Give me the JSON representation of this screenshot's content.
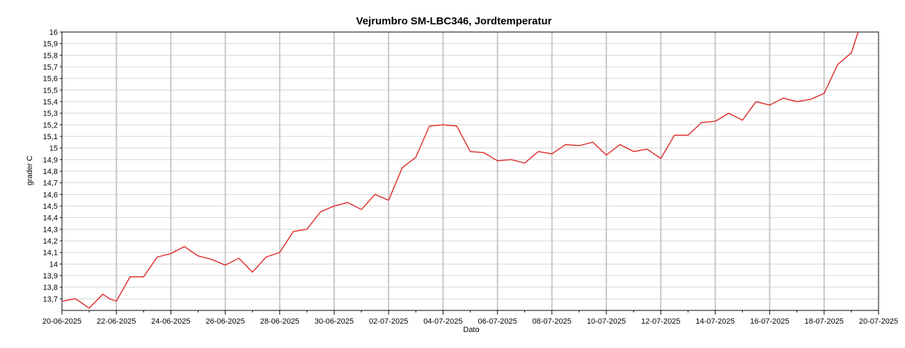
{
  "chart_data": {
    "type": "line",
    "title": "Vejrumbro SM-LBC346, Jordtemperatur",
    "xlabel": "Dato",
    "ylabel": "grader C",
    "x_tick_labels": [
      "20-06-2025",
      "22-06-2025",
      "24-06-2025",
      "26-06-2025",
      "28-06-2025",
      "30-06-2025",
      "02-07-2025",
      "04-07-2025",
      "06-07-2025",
      "08-07-2025",
      "10-07-2025",
      "12-07-2025",
      "14-07-2025",
      "16-07-2025",
      "18-07-2025",
      "20-07-2025"
    ],
    "y_tick_labels": [
      "13,7",
      "13,8",
      "13,9",
      "14",
      "14,1",
      "14,2",
      "14,3",
      "14,4",
      "14,5",
      "14,6",
      "14,7",
      "14,8",
      "14,9",
      "15",
      "15,1",
      "15,2",
      "15,3",
      "15,4",
      "15,5",
      "15,6",
      "15,7",
      "15,8",
      "15,9",
      "16"
    ],
    "xlim": [
      "2025-06-20",
      "2025-07-20"
    ],
    "ylim": [
      13.6,
      16.0
    ],
    "grid": true,
    "series": [
      {
        "color": "#e03030",
        "x": [
          "2025-06-20",
          "2025-06-20T12:00",
          "2025-06-21",
          "2025-06-21T12:00",
          "2025-06-21T18:00",
          "2025-06-22",
          "2025-06-22T12:00",
          "2025-06-23",
          "2025-06-23T12:00",
          "2025-06-24",
          "2025-06-24T12:00",
          "2025-06-25",
          "2025-06-25T12:00",
          "2025-06-26",
          "2025-06-26T12:00",
          "2025-06-27",
          "2025-06-27T12:00",
          "2025-06-28",
          "2025-06-28T12:00",
          "2025-06-29",
          "2025-06-29T12:00",
          "2025-06-30",
          "2025-06-30T12:00",
          "2025-07-01",
          "2025-07-01T12:00",
          "2025-07-02",
          "2025-07-02T12:00",
          "2025-07-03",
          "2025-07-03T12:00",
          "2025-07-04",
          "2025-07-04T12:00",
          "2025-07-05",
          "2025-07-05T12:00",
          "2025-07-06",
          "2025-07-06T12:00",
          "2025-07-07",
          "2025-07-07T12:00",
          "2025-07-08",
          "2025-07-08T12:00",
          "2025-07-09",
          "2025-07-09T12:00",
          "2025-07-10",
          "2025-07-10T12:00",
          "2025-07-11",
          "2025-07-11T12:00",
          "2025-07-12",
          "2025-07-12T12:00",
          "2025-07-13",
          "2025-07-13T12:00",
          "2025-07-14",
          "2025-07-14T12:00",
          "2025-07-15",
          "2025-07-15T12:00",
          "2025-07-16",
          "2025-07-16T12:00",
          "2025-07-17",
          "2025-07-17T12:00",
          "2025-07-18",
          "2025-07-18T12:00",
          "2025-07-19",
          "2025-07-19T06:00"
        ],
        "values": [
          13.68,
          13.7,
          13.62,
          13.74,
          13.7,
          13.68,
          13.89,
          13.89,
          14.06,
          14.09,
          14.15,
          14.07,
          14.04,
          13.99,
          14.05,
          13.93,
          14.06,
          14.1,
          14.28,
          14.3,
          14.45,
          14.5,
          14.53,
          14.47,
          14.6,
          14.55,
          14.83,
          14.92,
          15.19,
          15.2,
          15.19,
          14.97,
          14.96,
          14.89,
          14.9,
          14.87,
          14.97,
          14.95,
          15.03,
          15.02,
          15.05,
          14.94,
          15.03,
          14.97,
          14.99,
          14.91,
          15.11,
          15.11,
          15.22,
          15.23,
          15.3,
          15.24,
          15.4,
          15.37,
          15.43,
          15.4,
          15.42,
          15.47,
          15.72,
          15.82,
          16.0
        ]
      }
    ]
  }
}
